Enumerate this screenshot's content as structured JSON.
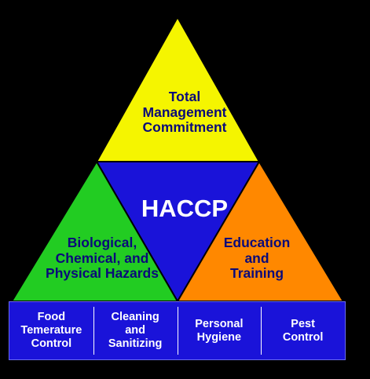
{
  "diagram": {
    "center": "HACCP",
    "top": "Total\nManagement\nCommitment",
    "left": "Biological,\nChemical, and\nPhysical Hazards",
    "right": "Education\nand\nTraining",
    "base": [
      "Food\nTemerature\nControl",
      "Cleaning\nand\nSanitizing",
      "Personal\nHygiene",
      "Pest\nControl"
    ]
  },
  "colors": {
    "top": "#f5f500",
    "left": "#22cc22",
    "center": "#1a13d9",
    "right": "#ff8800",
    "base": "#1a13d9",
    "text_dark": "#0a0a7a",
    "text_light": "#ffffff",
    "outline": "#000000"
  }
}
